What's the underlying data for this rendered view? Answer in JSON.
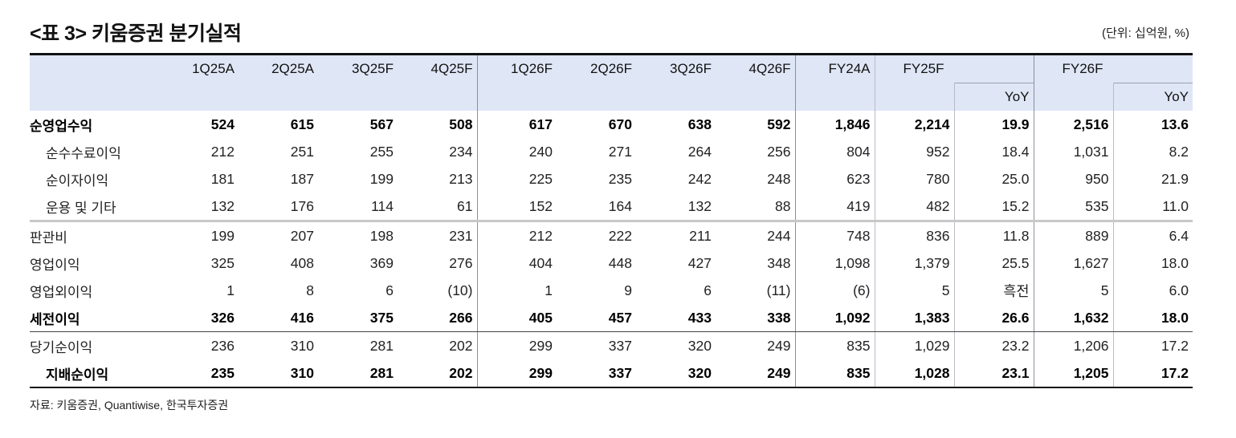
{
  "title": "<표 3> 키움증권 분기실적",
  "unit": "(단위: 십억원, %)",
  "columns": [
    "1Q25A",
    "2Q25A",
    "3Q25F",
    "4Q25F",
    "1Q26F",
    "2Q26F",
    "3Q26F",
    "4Q26F",
    "FY24A",
    "FY25F",
    "YoY",
    "FY26F",
    "YoY"
  ],
  "rows": [
    {
      "label": "순영업수익",
      "values": [
        "524",
        "615",
        "567",
        "508",
        "617",
        "670",
        "638",
        "592",
        "1,846",
        "2,214",
        "19.9",
        "2,516",
        "13.6"
      ]
    },
    {
      "label": "순수수료이익",
      "values": [
        "212",
        "251",
        "255",
        "234",
        "240",
        "271",
        "264",
        "256",
        "804",
        "952",
        "18.4",
        "1,031",
        "8.2"
      ]
    },
    {
      "label": "순이자이익",
      "values": [
        "181",
        "187",
        "199",
        "213",
        "225",
        "235",
        "242",
        "248",
        "623",
        "780",
        "25.0",
        "950",
        "21.9"
      ]
    },
    {
      "label": "운용 및 기타",
      "values": [
        "132",
        "176",
        "114",
        "61",
        "152",
        "164",
        "132",
        "88",
        "419",
        "482",
        "15.2",
        "535",
        "11.0"
      ]
    },
    {
      "label": "판관비",
      "values": [
        "199",
        "207",
        "198",
        "231",
        "212",
        "222",
        "211",
        "244",
        "748",
        "836",
        "11.8",
        "889",
        "6.4"
      ]
    },
    {
      "label": "영업이익",
      "values": [
        "325",
        "408",
        "369",
        "276",
        "404",
        "448",
        "427",
        "348",
        "1,098",
        "1,379",
        "25.5",
        "1,627",
        "18.0"
      ]
    },
    {
      "label": "영업외이익",
      "values": [
        "1",
        "8",
        "6",
        "(10)",
        "1",
        "9",
        "6",
        "(11)",
        "(6)",
        "5",
        "흑전",
        "5",
        "6.0"
      ]
    },
    {
      "label": "세전이익",
      "values": [
        "326",
        "416",
        "375",
        "266",
        "405",
        "457",
        "433",
        "338",
        "1,092",
        "1,383",
        "26.6",
        "1,632",
        "18.0"
      ]
    },
    {
      "label": "당기순이익",
      "values": [
        "236",
        "310",
        "281",
        "202",
        "299",
        "337",
        "320",
        "249",
        "835",
        "1,029",
        "23.2",
        "1,206",
        "17.2"
      ]
    },
    {
      "label": "지배순이익",
      "values": [
        "235",
        "310",
        "281",
        "202",
        "299",
        "337",
        "320",
        "249",
        "835",
        "1,028",
        "23.1",
        "1,205",
        "17.2"
      ]
    }
  ],
  "source": "자료: 키움증권, Quantiwise, 한국투자증권"
}
